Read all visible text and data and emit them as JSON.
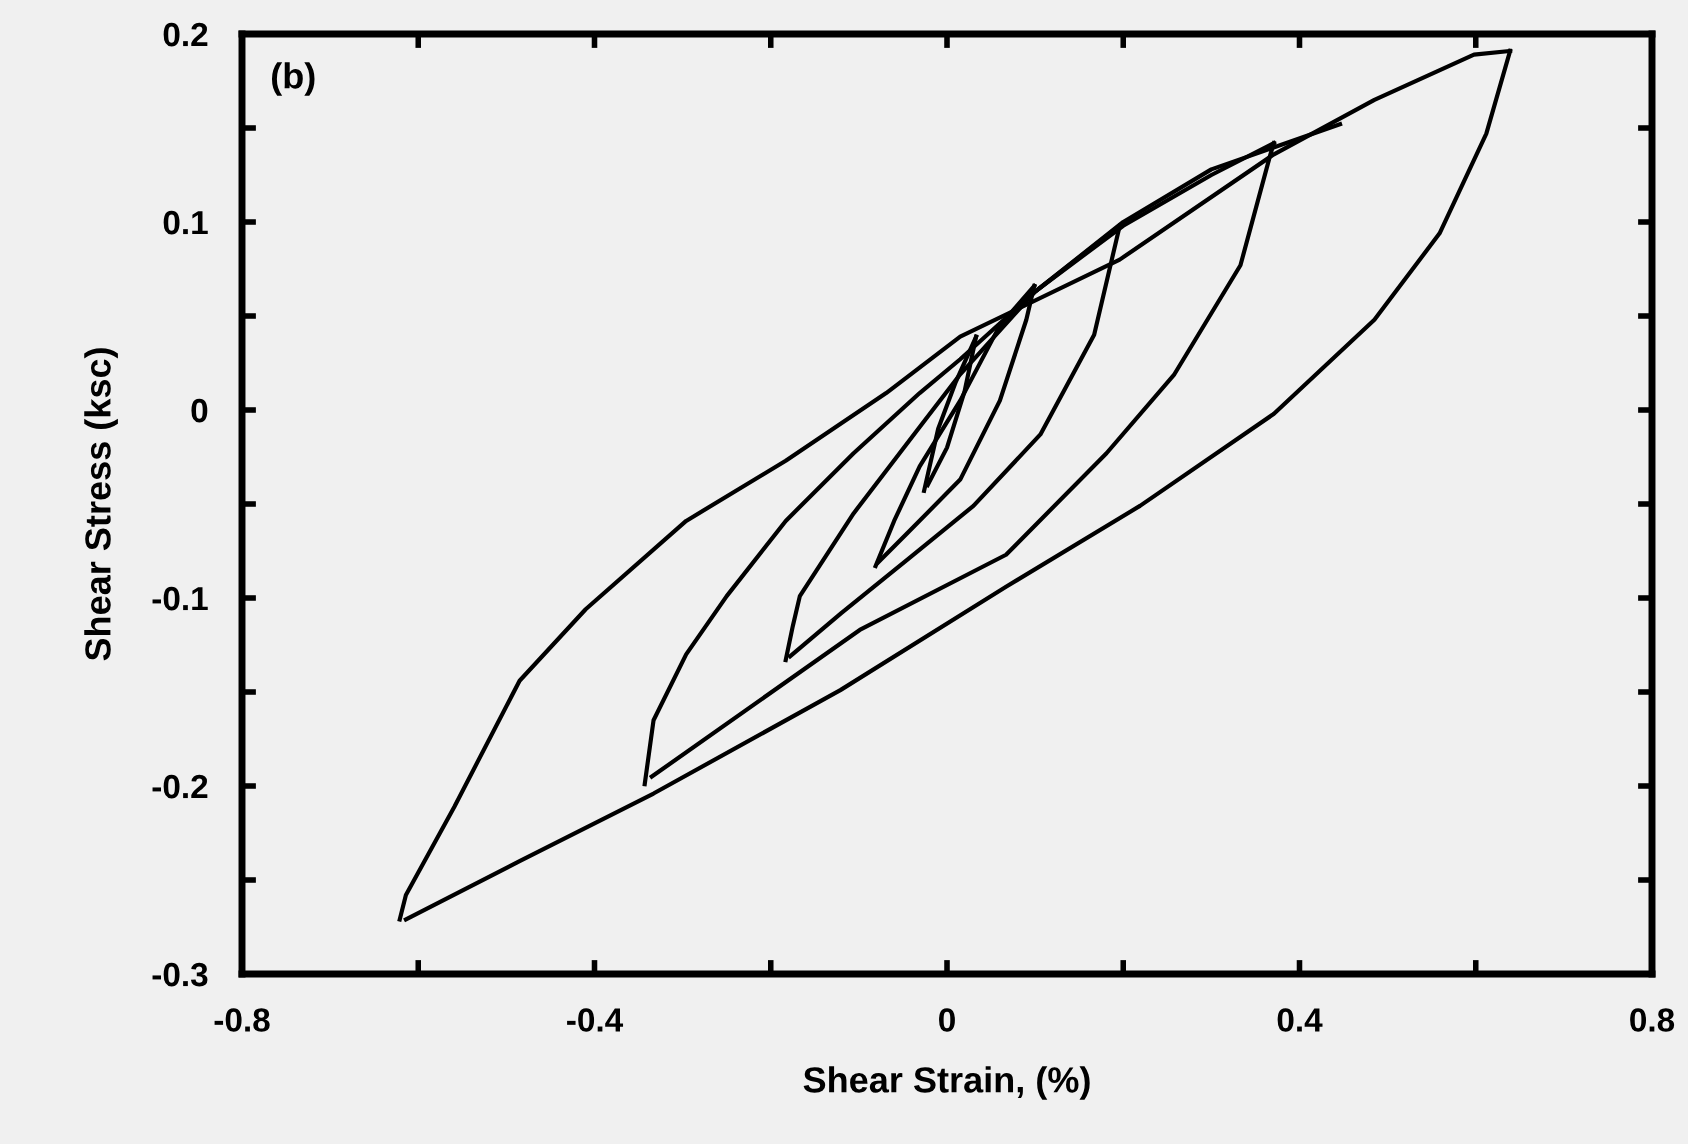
{
  "chart_data": {
    "type": "line",
    "xlabel": "Shear Strain, (%)",
    "ylabel": "Shear Stress (ksc)",
    "annotations": [
      "(b)"
    ],
    "xlim": [
      -0.8,
      0.8
    ],
    "ylim": [
      -0.3,
      0.2
    ],
    "xticks": [
      -0.8,
      {
        "value": -0.6,
        "label": null
      },
      -0.4,
      {
        "value": -0.2,
        "label": null
      },
      0,
      {
        "value": 0.2,
        "label": null
      },
      0.4,
      {
        "value": 0.6,
        "label": null
      },
      0.8
    ],
    "yticks": [
      -0.3,
      {
        "value": -0.25,
        "label": null
      },
      -0.2,
      {
        "value": -0.15,
        "label": null
      },
      -0.1,
      {
        "value": -0.05,
        "label": null
      },
      0,
      {
        "value": 0.05,
        "label": null
      },
      0.1,
      {
        "value": 0.15,
        "label": null
      },
      0.2
    ],
    "grid": false,
    "marker": "none",
    "line_style": "solid",
    "series": [
      {
        "color": "#000000",
        "x": [
          -0.621,
          -0.614,
          -0.559,
          -0.485,
          -0.41,
          -0.296,
          -0.183,
          -0.069,
          0.015,
          0.196,
          0.371,
          0.485,
          0.598,
          0.639
        ],
        "values": [
          -0.271,
          -0.258,
          -0.211,
          -0.144,
          -0.106,
          -0.059,
          -0.027,
          0.009,
          0.039,
          0.08,
          0.136,
          0.165,
          0.189,
          0.191
        ]
      },
      {
        "color": "#000000",
        "x": [
          0.639,
          0.612,
          0.559,
          0.485,
          0.371,
          0.219,
          0.067,
          -0.121,
          -0.333,
          -0.485,
          -0.614
        ],
        "values": [
          0.191,
          0.147,
          0.094,
          0.048,
          -0.002,
          -0.051,
          -0.094,
          -0.149,
          -0.204,
          -0.24,
          -0.271
        ]
      },
      {
        "color": "#000000",
        "x": [
          0.371,
          0.367,
          0.333,
          0.258,
          0.181,
          0.067,
          -0.099,
          -0.335
        ],
        "values": [
          0.142,
          0.136,
          0.077,
          0.019,
          -0.023,
          -0.077,
          -0.117,
          -0.195
        ]
      },
      {
        "color": "#000000",
        "x": [
          -0.343,
          -0.333,
          -0.296,
          -0.25,
          -0.183,
          -0.106,
          -0.031,
          0.015,
          0.1,
          0.2,
          0.3,
          0.371
        ],
        "values": [
          -0.199,
          -0.165,
          -0.13,
          -0.099,
          -0.059,
          -0.023,
          0.009,
          0.027,
          0.063,
          0.098,
          0.125,
          0.142
        ]
      },
      {
        "color": "#000000",
        "x": [
          0.196,
          0.167,
          0.106,
          0.03,
          -0.046,
          -0.12,
          -0.178
        ],
        "values": [
          0.098,
          0.04,
          -0.013,
          -0.051,
          -0.08,
          -0.108,
          -0.131
        ]
      },
      {
        "color": "#000000",
        "x": [
          -0.183,
          -0.175,
          -0.167,
          -0.106,
          -0.031,
          0.015,
          0.1,
          0.196
        ],
        "values": [
          -0.133,
          -0.115,
          -0.099,
          -0.055,
          -0.009,
          0.019,
          0.063,
          0.098
        ]
      },
      {
        "color": "#000000",
        "x": [
          0.099,
          0.09,
          0.06,
          0.015,
          -0.046,
          -0.078
        ],
        "values": [
          0.066,
          0.048,
          0.005,
          -0.037,
          -0.066,
          -0.081
        ]
      },
      {
        "color": "#000000",
        "x": [
          -0.081,
          -0.06,
          -0.031,
          0.015,
          0.06,
          0.099
        ],
        "values": [
          -0.083,
          -0.059,
          -0.03,
          0.005,
          0.045,
          0.066
        ]
      },
      {
        "color": "#000000",
        "x": [
          -0.026,
          -0.01,
          0.01,
          0.033
        ],
        "values": [
          -0.043,
          -0.01,
          0.015,
          0.039
        ]
      },
      {
        "color": "#000000",
        "x": [
          0.033,
          0.02,
          0.0,
          -0.022
        ],
        "values": [
          0.039,
          0.01,
          -0.02,
          -0.04
        ]
      },
      {
        "color": "#000000",
        "x": [
          0.1,
          0.2,
          0.3,
          0.446
        ],
        "values": [
          0.063,
          0.1,
          0.128,
          0.152
        ]
      }
    ]
  }
}
